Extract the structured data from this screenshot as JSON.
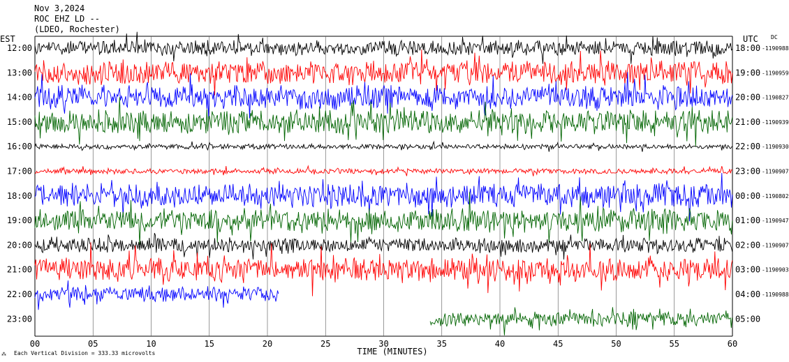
{
  "header": {
    "date": "Nov 3,2024",
    "station": "ROC EHZ LD --",
    "location": "(LDEO, Rochester)"
  },
  "chart_data": {
    "type": "line",
    "title": "Nov 3,2024",
    "left_axis_label": "EST",
    "right_axis_label": "UTC",
    "dc_label": "DC",
    "xlabel": "TIME (MINUTES)",
    "xlim": [
      0,
      60
    ],
    "x_ticks": [
      "00",
      "05",
      "10",
      "15",
      "20",
      "25",
      "30",
      "35",
      "40",
      "45",
      "50",
      "55",
      "60"
    ],
    "footnote": "Each Vertical Division =  333.33 microvolts",
    "colors": {
      "black": "#000000",
      "red": "#ff0000",
      "blue": "#0000ff",
      "green": "#006400"
    },
    "rows": [
      {
        "est": "12:00",
        "utc": "18:00",
        "dc": "-1190988",
        "color": "black",
        "amplitude": "medium",
        "end_minute": 60
      },
      {
        "est": "13:00",
        "utc": "19:00",
        "dc": "-1190959",
        "color": "red",
        "amplitude": "high",
        "end_minute": 60
      },
      {
        "est": "14:00",
        "utc": "20:00",
        "dc": "-1190827",
        "color": "blue",
        "amplitude": "high",
        "end_minute": 60
      },
      {
        "est": "15:00",
        "utc": "21:00",
        "dc": "-1190939",
        "color": "green",
        "amplitude": "high",
        "end_minute": 60
      },
      {
        "est": "16:00",
        "utc": "22:00",
        "dc": "-1190930",
        "color": "black",
        "amplitude": "low",
        "end_minute": 60
      },
      {
        "est": "17:00",
        "utc": "23:00",
        "dc": "-1190907",
        "color": "red",
        "amplitude": "low",
        "end_minute": 60
      },
      {
        "est": "18:00",
        "utc": "00:00",
        "dc": "-1190802",
        "color": "blue",
        "amplitude": "high",
        "end_minute": 60
      },
      {
        "est": "19:00",
        "utc": "01:00",
        "dc": "-1190947",
        "color": "green",
        "amplitude": "high",
        "end_minute": 60
      },
      {
        "est": "20:00",
        "utc": "02:00",
        "dc": "-1190907",
        "color": "black",
        "amplitude": "medium",
        "end_minute": 60
      },
      {
        "est": "21:00",
        "utc": "03:00",
        "dc": "-1190903",
        "color": "red",
        "amplitude": "high",
        "end_minute": 60
      },
      {
        "est": "22:00",
        "utc": "04:00",
        "dc": "-1190988",
        "color": "blue",
        "amplitude": "medium",
        "end_minute": 21
      },
      {
        "est": "23:00",
        "utc": "05:00",
        "dc": "",
        "color": "green",
        "amplitude": "medium",
        "start_minute": 34,
        "end_minute": 60
      }
    ]
  }
}
